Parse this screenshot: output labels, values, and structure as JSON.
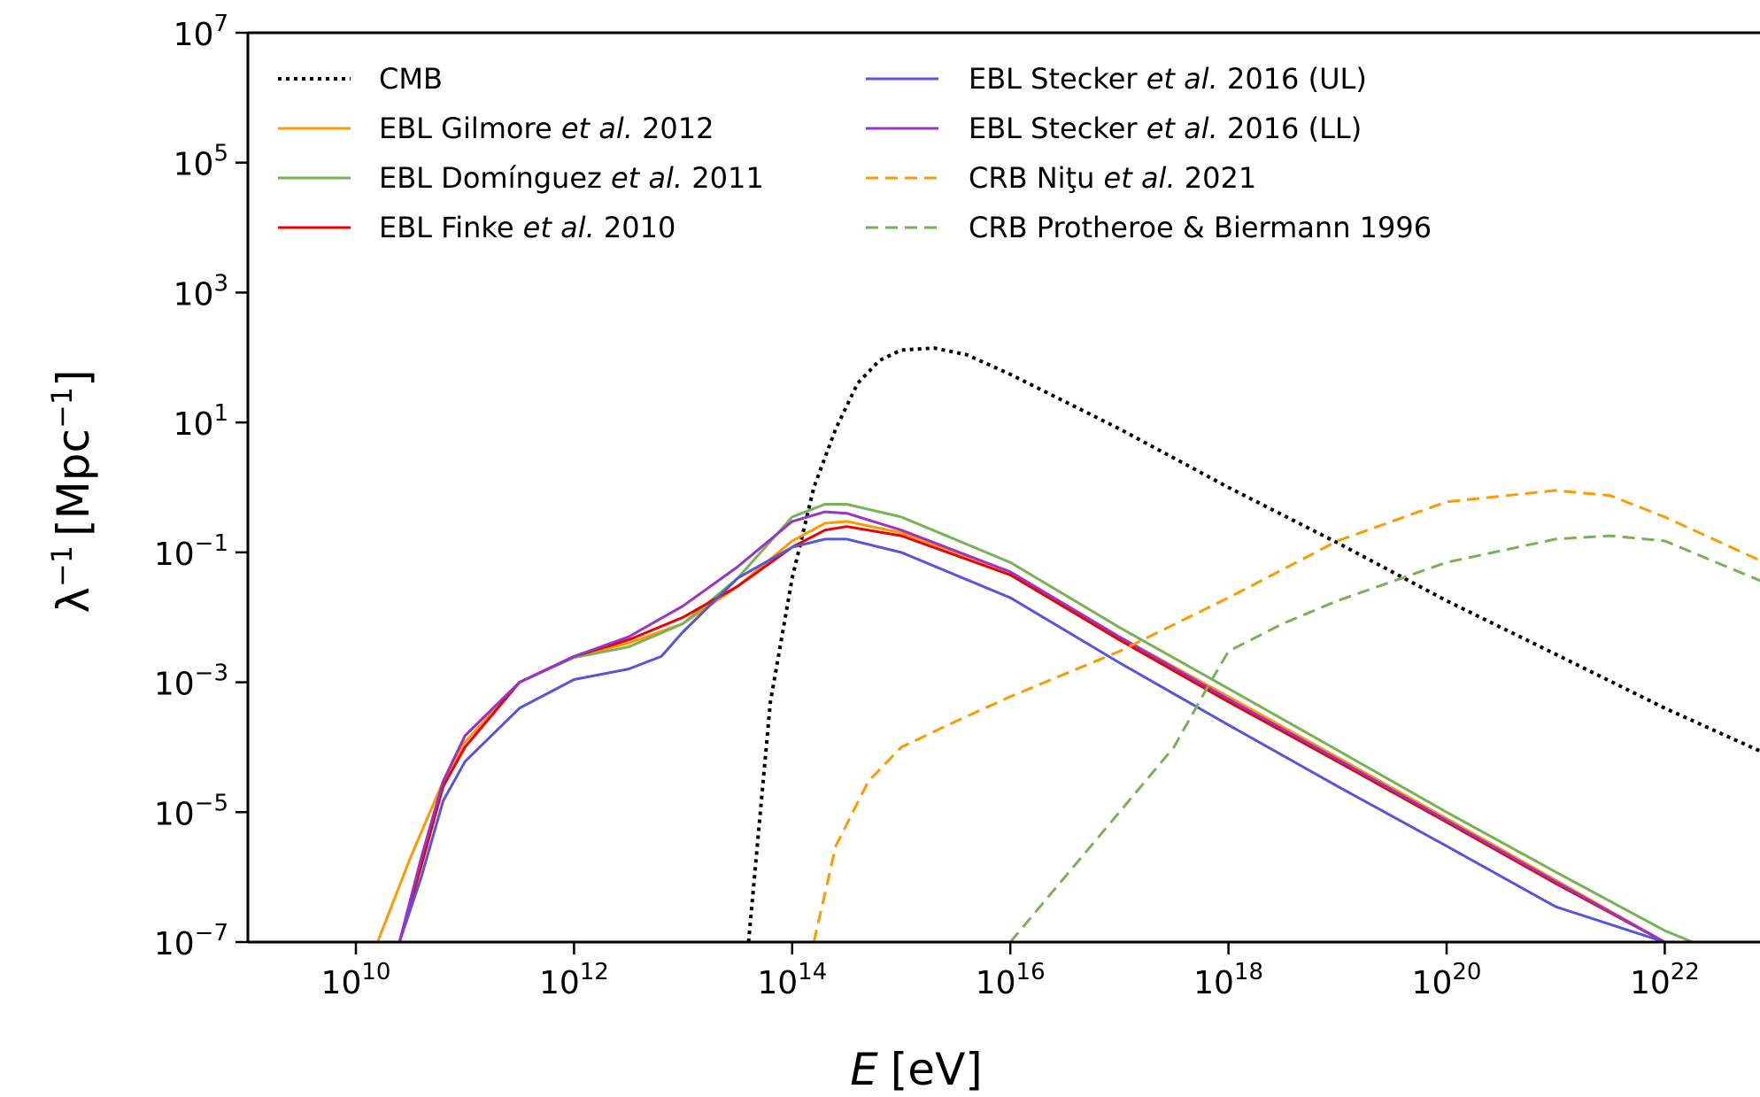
{
  "chart_data": {
    "type": "line",
    "title": "",
    "xlabel_symbol": "E",
    "xlabel_unit": "[eV]",
    "ylabel_symbol": "λ",
    "ylabel_unit": "[Mpc",
    "ylabel_exp": "−1",
    "ylabel_close": "]",
    "x_scale": "log",
    "y_scale": "log",
    "xlim": [
      500000000.0,
      1e+23
    ],
    "ylim": [
      1e-07,
      10000000.0
    ],
    "x_ticks": [
      {
        "base": "10",
        "exp": "10",
        "value": 10000000000.0
      },
      {
        "base": "10",
        "exp": "12",
        "value": 1000000000000.0
      },
      {
        "base": "10",
        "exp": "14",
        "value": 100000000000000.0
      },
      {
        "base": "10",
        "exp": "16",
        "value": 1e+16
      },
      {
        "base": "10",
        "exp": "18",
        "value": 1e+18
      },
      {
        "base": "10",
        "exp": "20",
        "value": 1e+20
      },
      {
        "base": "10",
        "exp": "22",
        "value": 1e+22
      }
    ],
    "y_ticks": [
      {
        "base": "10",
        "exp": "−7",
        "value": 1e-07
      },
      {
        "base": "10",
        "exp": "−5",
        "value": 1e-05
      },
      {
        "base": "10",
        "exp": "−3",
        "value": 0.001
      },
      {
        "base": "10",
        "exp": "−1",
        "value": 0.1
      },
      {
        "base": "10",
        "exp": "1",
        "value": 10
      },
      {
        "base": "10",
        "exp": "3",
        "value": 1000
      },
      {
        "base": "10",
        "exp": "5",
        "value": 100000.0
      },
      {
        "base": "10",
        "exp": "7",
        "value": 10000000.0
      }
    ],
    "grid": false,
    "legend": {
      "placement": "top-left",
      "columns": 2,
      "entries": [
        {
          "prefix": "CMB",
          "italic": "",
          "suffix": ""
        },
        {
          "prefix": "EBL Gilmore ",
          "italic": "et al.",
          "suffix": " 2012"
        },
        {
          "prefix": "EBL Domínguez ",
          "italic": "et al.",
          "suffix": " 2011"
        },
        {
          "prefix": "EBL Finke ",
          "italic": "et al.",
          "suffix": " 2010"
        },
        {
          "prefix": "EBL Stecker ",
          "italic": "et al.",
          "suffix": " 2016 (UL)"
        },
        {
          "prefix": "EBL Stecker ",
          "italic": "et al.",
          "suffix": " 2016 (LL)"
        },
        {
          "prefix": "CRB Niţu ",
          "italic": "et al.",
          "suffix": " 2021"
        },
        {
          "prefix": "CRB Protheroe & Biermann 1996",
          "italic": "",
          "suffix": ""
        }
      ]
    },
    "series": [
      {
        "color": "#000000",
        "dash": "dotted",
        "points": [
          [
            39800000000000.0,
            1e-07
          ],
          [
            63100000000000.0,
            0.0005
          ],
          [
            100000000000000.0,
            0.04
          ],
          [
            158000000000000.0,
            1.0
          ],
          [
            251000000000000.0,
            8.0
          ],
          [
            398000000000000.0,
            40
          ],
          [
            631000000000000.0,
            90
          ],
          [
            1000000000000000.0,
            130
          ],
          [
            2000000000000000.0,
            140
          ],
          [
            4000000000000000.0,
            110
          ],
          [
            1e+16,
            55
          ],
          [
            1e+17,
            8
          ],
          [
            1e+18,
            1.0
          ],
          [
            1e+19,
            0.14
          ],
          [
            1e+20,
            0.018
          ],
          [
            1e+21,
            0.0027
          ],
          [
            1e+22,
            0.0004
          ],
          [
            1e+23,
            7e-05
          ]
        ]
      },
      {
        "color": "#ff9900",
        "dash": "solid",
        "points": [
          [
            15800000000.0,
            1e-07
          ],
          [
            31600000000.0,
            2e-06
          ],
          [
            63100000000.0,
            3e-05
          ],
          [
            100000000000.0,
            0.00012
          ],
          [
            316000000000.0,
            0.001
          ],
          [
            1000000000000.0,
            0.0025
          ],
          [
            3160000000000.0,
            0.004
          ],
          [
            10000000000000.0,
            0.008
          ],
          [
            31600000000000.0,
            0.03
          ],
          [
            100000000000000.0,
            0.15
          ],
          [
            200000000000000.0,
            0.28
          ],
          [
            316000000000000.0,
            0.3
          ],
          [
            1000000000000000.0,
            0.2
          ],
          [
            1e+16,
            0.05
          ],
          [
            1e+17,
            0.005
          ],
          [
            1e+18,
            0.0006
          ],
          [
            1e+19,
            7e-05
          ],
          [
            1e+20,
            8e-06
          ],
          [
            1e+21,
            9e-07
          ],
          [
            1e+22,
            1e-07
          ],
          [
            1.6e+22,
            1e-07
          ]
        ]
      },
      {
        "color": "#77b255",
        "dash": "solid",
        "points": [
          [
            25100000000.0,
            1e-07
          ],
          [
            39800000000.0,
            2e-06
          ],
          [
            63100000000.0,
            3e-05
          ],
          [
            100000000000.0,
            0.00015
          ],
          [
            316000000000.0,
            0.001
          ],
          [
            1000000000000.0,
            0.0024
          ],
          [
            3160000000000.0,
            0.0035
          ],
          [
            10000000000000.0,
            0.008
          ],
          [
            31600000000000.0,
            0.04
          ],
          [
            100000000000000.0,
            0.35
          ],
          [
            200000000000000.0,
            0.55
          ],
          [
            316000000000000.0,
            0.55
          ],
          [
            1000000000000000.0,
            0.35
          ],
          [
            1e+16,
            0.07
          ],
          [
            1e+17,
            0.007
          ],
          [
            1e+18,
            0.0008
          ],
          [
            1e+19,
            9e-05
          ],
          [
            1e+20,
            1e-05
          ],
          [
            1e+21,
            1.2e-06
          ],
          [
            1e+22,
            1.5e-07
          ],
          [
            1.8e+22,
            1e-07
          ]
        ]
      },
      {
        "color": "#ee0000",
        "dash": "solid",
        "points": [
          [
            25100000000.0,
            1e-07
          ],
          [
            39800000000.0,
            1.5e-06
          ],
          [
            63100000000.0,
            2.5e-05
          ],
          [
            100000000000.0,
            0.0001
          ],
          [
            316000000000.0,
            0.001
          ],
          [
            1000000000000.0,
            0.0025
          ],
          [
            3160000000000.0,
            0.0045
          ],
          [
            10000000000000.0,
            0.01
          ],
          [
            31600000000000.0,
            0.03
          ],
          [
            100000000000000.0,
            0.12
          ],
          [
            200000000000000.0,
            0.22
          ],
          [
            316000000000000.0,
            0.25
          ],
          [
            1000000000000000.0,
            0.18
          ],
          [
            1e+16,
            0.045
          ],
          [
            1e+17,
            0.0045
          ],
          [
            1e+18,
            0.0005
          ],
          [
            1e+19,
            6e-05
          ],
          [
            1e+20,
            7e-06
          ],
          [
            1e+21,
            8e-07
          ],
          [
            1e+22,
            1e-07
          ],
          [
            1.5e+22,
            1e-07
          ]
        ]
      },
      {
        "color": "#5555dd",
        "dash": "solid",
        "points": [
          [
            25100000000.0,
            1e-07
          ],
          [
            39800000000.0,
            1e-06
          ],
          [
            63100000000.0,
            1.5e-05
          ],
          [
            100000000000.0,
            6e-05
          ],
          [
            316000000000.0,
            0.0004
          ],
          [
            1000000000000.0,
            0.0011
          ],
          [
            3160000000000.0,
            0.0016
          ],
          [
            6310000000000.0,
            0.0025
          ],
          [
            10000000000000.0,
            0.006
          ],
          [
            31600000000000.0,
            0.04
          ],
          [
            100000000000000.0,
            0.12
          ],
          [
            200000000000000.0,
            0.16
          ],
          [
            316000000000000.0,
            0.16
          ],
          [
            1000000000000000.0,
            0.1
          ],
          [
            1e+16,
            0.02
          ],
          [
            1e+17,
            0.002
          ],
          [
            1e+18,
            0.00022
          ],
          [
            1e+19,
            2.5e-05
          ],
          [
            1e+20,
            3e-06
          ],
          [
            1e+21,
            3.5e-07
          ],
          [
            1e+22,
            1e-07
          ],
          [
            1e+22,
            1e-07
          ]
        ]
      },
      {
        "color": "#9933cc",
        "dash": "solid",
        "points": [
          [
            25100000000.0,
            1e-07
          ],
          [
            39800000000.0,
            2e-06
          ],
          [
            63100000000.0,
            3e-05
          ],
          [
            100000000000.0,
            0.00015
          ],
          [
            316000000000.0,
            0.001
          ],
          [
            1000000000000.0,
            0.0025
          ],
          [
            3160000000000.0,
            0.005
          ],
          [
            10000000000000.0,
            0.015
          ],
          [
            31600000000000.0,
            0.06
          ],
          [
            100000000000000.0,
            0.3
          ],
          [
            200000000000000.0,
            0.42
          ],
          [
            316000000000000.0,
            0.4
          ],
          [
            1000000000000000.0,
            0.22
          ],
          [
            1e+16,
            0.05
          ],
          [
            1e+17,
            0.005
          ],
          [
            1e+18,
            0.00055
          ],
          [
            1e+19,
            6.5e-05
          ],
          [
            1e+20,
            7.5e-06
          ],
          [
            1e+21,
            8.5e-07
          ],
          [
            1e+22,
            1e-07
          ],
          [
            1.5e+22,
            1e-07
          ]
        ]
      },
      {
        "color": "#ff9900",
        "dash": "dashed",
        "points": [
          [
            158000000000000.0,
            1e-07
          ],
          [
            251000000000000.0,
            3e-06
          ],
          [
            500000000000000.0,
            3e-05
          ],
          [
            1000000000000000.0,
            0.0001
          ],
          [
            3160000000000000.0,
            0.00025
          ],
          [
            1e+16,
            0.0006
          ],
          [
            1e+17,
            0.003
          ],
          [
            1e+18,
            0.02
          ],
          [
            1e+19,
            0.15
          ],
          [
            1e+20,
            0.6
          ],
          [
            1e+21,
            0.9
          ],
          [
            3.16e+21,
            0.75
          ],
          [
            1e+22,
            0.35
          ],
          [
            1e+23,
            0.06
          ]
        ]
      },
      {
        "color": "#77b255",
        "dash": "dashed",
        "points": [
          [
            1e+16,
            1e-07
          ],
          [
            3.16e+16,
            1e-06
          ],
          [
            1e+17,
            1e-05
          ],
          [
            3.16e+17,
            0.0001
          ],
          [
            6.31e+17,
            0.0008
          ],
          [
            1e+18,
            0.003
          ],
          [
            3.16e+18,
            0.008
          ],
          [
            1e+19,
            0.018
          ],
          [
            1e+20,
            0.07
          ],
          [
            1e+21,
            0.16
          ],
          [
            3.16e+21,
            0.18
          ],
          [
            1e+22,
            0.15
          ],
          [
            1e+23,
            0.03
          ]
        ]
      }
    ]
  }
}
